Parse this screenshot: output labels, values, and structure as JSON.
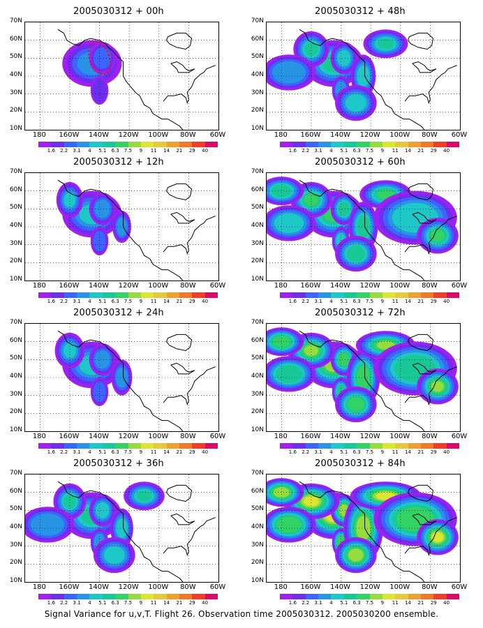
{
  "colors": {
    "levels": [
      "#a020f0",
      "#6e2ef0",
      "#3c64ff",
      "#2894e6",
      "#1ec8c8",
      "#18c896",
      "#32d264",
      "#96dc3c",
      "#dce632",
      "#e6c83c",
      "#f0a032",
      "#f07828",
      "#f03c28",
      "#dc0a64"
    ],
    "coast": "#000000",
    "grid": "#000000"
  },
  "colorbar_labels": [
    "1.6",
    "2.2",
    "3.1",
    "4",
    "5.1",
    "6.3",
    "7.5",
    "9",
    "11",
    "14",
    "21",
    "29",
    "40"
  ],
  "lat_labels": [
    "70N",
    "60N",
    "50N",
    "40N",
    "30N",
    "20N",
    "10N"
  ],
  "lon_labels": [
    "180",
    "160W",
    "140W",
    "120W",
    "100W",
    "80W",
    "60W"
  ],
  "panels": [
    {
      "title": "2005030312 + 00h",
      "lead_hours": 0,
      "intensity": 0.15
    },
    {
      "title": "2005030312 + 48h",
      "lead_hours": 48,
      "intensity": 0.35
    },
    {
      "title": "2005030312 + 12h",
      "lead_hours": 12,
      "intensity": 0.2
    },
    {
      "title": "2005030312 + 60h",
      "lead_hours": 60,
      "intensity": 0.45
    },
    {
      "title": "2005030312 + 24h",
      "lead_hours": 24,
      "intensity": 0.25
    },
    {
      "title": "2005030312 + 72h",
      "lead_hours": 72,
      "intensity": 0.55
    },
    {
      "title": "2005030312 + 36h",
      "lead_hours": 36,
      "intensity": 0.3
    },
    {
      "title": "2005030312 + 84h",
      "lead_hours": 84,
      "intensity": 0.7
    }
  ],
  "caption": "Signal Variance for u,v,T. Flight 26. Observation time 2005030312. 2005030200 ensemble."
}
